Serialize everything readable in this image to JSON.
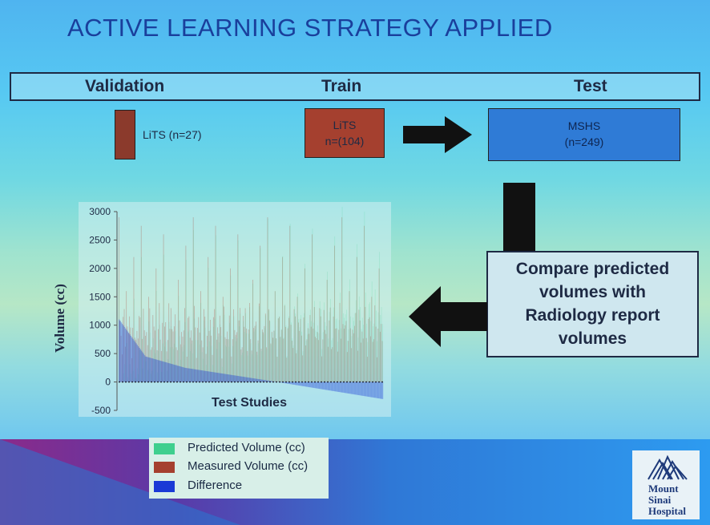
{
  "slide": {
    "title": "ACTIVE LEARNING STRATEGY APPLIED"
  },
  "header": {
    "validation": "Validation",
    "train": "Train",
    "test": "Test"
  },
  "boxes": {
    "validation_label": "LiTS (n=27)",
    "train_line1": "LiTS",
    "train_line2": "n=(104)",
    "test_line1": "MSHS",
    "test_line2": "(n=249)"
  },
  "compare": {
    "line1": "Compare predicted",
    "line2": "volumes with",
    "line3": "Radiology report",
    "line4": "volumes"
  },
  "colors": {
    "validation_box": "#8b3a2c",
    "train_box": "#a5402f",
    "test_box": "#2f7bd6",
    "arrow": "#111111",
    "predicted": "#3ecf8e",
    "measured": "#a5402f",
    "difference": "#1a3ad6"
  },
  "chart_data": {
    "type": "bar",
    "xlabel": "Test Studies",
    "ylabel": "Volume (cc)",
    "ylim": [
      -500,
      3000
    ],
    "yticks": [
      "3000",
      "2500",
      "2000",
      "1500",
      "1000",
      "500",
      "0",
      "-500"
    ],
    "ytick_values": [
      3000,
      2500,
      2000,
      1500,
      1000,
      500,
      0,
      -500
    ],
    "n_studies": 249,
    "series": [
      {
        "name": "Predicted Volume (cc)"
      },
      {
        "name": "Measured Volume (cc)"
      },
      {
        "name": "Difference"
      }
    ],
    "difference_profile": {
      "first": 1100,
      "after_10pct": 450,
      "after_25pct": 250,
      "after_60pct": 0,
      "last": -300
    },
    "measured_peaks": [
      2900,
      2750,
      2600,
      2400,
      2200,
      2000,
      1800,
      1600,
      1500,
      1300
    ],
    "zero_line": "dotted"
  },
  "legend": {
    "predicted": "Predicted Volume (cc)",
    "measured": "Measured Volume (cc)",
    "difference": "Difference"
  },
  "logo": {
    "line1": "Mount",
    "line2": "Sinai",
    "line3": "Hospital",
    "icon": "mountain-icon"
  }
}
